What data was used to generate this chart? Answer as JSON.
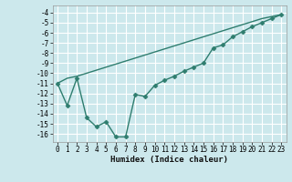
{
  "xlabel": "Humidex (Indice chaleur)",
  "xlim": [
    -0.5,
    23.5
  ],
  "ylim": [
    -16.8,
    -3.3
  ],
  "yticks": [
    -4,
    -5,
    -6,
    -7,
    -8,
    -9,
    -10,
    -11,
    -12,
    -13,
    -14,
    -15,
    -16
  ],
  "xticks": [
    0,
    1,
    2,
    3,
    4,
    5,
    6,
    7,
    8,
    9,
    10,
    11,
    12,
    13,
    14,
    15,
    16,
    17,
    18,
    19,
    20,
    21,
    22,
    23
  ],
  "bg_color": "#cce8ec",
  "grid_color": "#ffffff",
  "line_color": "#2e7d6e",
  "line1_x": [
    0,
    1,
    2,
    3,
    4,
    5,
    6,
    7,
    8,
    9,
    10,
    11,
    12,
    13,
    14,
    15,
    16,
    17,
    18,
    19,
    20,
    21,
    22,
    23
  ],
  "line1_y": [
    -11.0,
    -10.5,
    -10.3,
    -10.0,
    -9.7,
    -9.4,
    -9.1,
    -8.8,
    -8.5,
    -8.2,
    -7.9,
    -7.6,
    -7.3,
    -7.0,
    -6.7,
    -6.4,
    -6.1,
    -5.8,
    -5.5,
    -5.2,
    -4.9,
    -4.6,
    -4.4,
    -4.2
  ],
  "line2_x": [
    0,
    1,
    2,
    3,
    4,
    5,
    6,
    7,
    8,
    9,
    10,
    11,
    12,
    13,
    14,
    15,
    16,
    17,
    18,
    19,
    20,
    21,
    22,
    23
  ],
  "line2_y": [
    -11.0,
    -13.2,
    -10.5,
    -14.4,
    -15.3,
    -14.8,
    -16.3,
    -16.3,
    -12.1,
    -12.3,
    -11.2,
    -10.7,
    -10.3,
    -9.8,
    -9.4,
    -9.0,
    -7.5,
    -7.2,
    -6.4,
    -5.9,
    -5.4,
    -5.0,
    -4.6,
    -4.2
  ],
  "tick_fontsize": 5.5,
  "xlabel_fontsize": 6.5,
  "marker": "D",
  "markersize": 2.5
}
